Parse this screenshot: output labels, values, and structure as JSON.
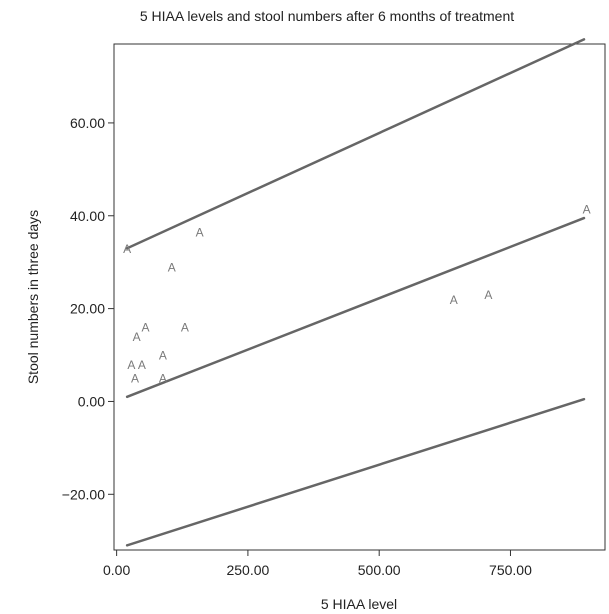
{
  "chart_data": {
    "type": "scatter",
    "title": "5 HIAA levels and stool numbers after 6 months of treatment",
    "xlabel": "5 HIAA level",
    "ylabel": "Stool numbers in three days",
    "xlim": [
      -5,
      930
    ],
    "ylim": [
      -32,
      77
    ],
    "xticks": [
      0,
      250,
      500,
      750
    ],
    "xtick_labels": [
      "0.00",
      "250.00",
      "500.00",
      "750.00"
    ],
    "yticks": [
      -20,
      0,
      20,
      40,
      60
    ],
    "ytick_labels": [
      "−20.00",
      "0.00",
      "20.00",
      "40.00",
      "60.00"
    ],
    "grid": false,
    "marker_label": "A",
    "points": [
      {
        "x": 20,
        "y": 33
      },
      {
        "x": 28,
        "y": 8
      },
      {
        "x": 35,
        "y": 5
      },
      {
        "x": 38,
        "y": 14
      },
      {
        "x": 48,
        "y": 8
      },
      {
        "x": 55,
        "y": 16
      },
      {
        "x": 88,
        "y": 10
      },
      {
        "x": 88,
        "y": 5
      },
      {
        "x": 105,
        "y": 29
      },
      {
        "x": 130,
        "y": 16
      },
      {
        "x": 158,
        "y": 36.5
      },
      {
        "x": 642,
        "y": 22
      },
      {
        "x": 708,
        "y": 23
      },
      {
        "x": 895,
        "y": 41.5
      }
    ],
    "lines": [
      {
        "x": [
          20,
          890
        ],
        "y": [
          33,
          78
        ]
      },
      {
        "x": [
          20,
          890
        ],
        "y": [
          1,
          39.5
        ]
      },
      {
        "x": [
          20,
          890
        ],
        "y": [
          -31,
          0.5
        ]
      }
    ],
    "colors": {
      "line": "#666666",
      "marker": "#7a7a7a",
      "axis": "#333333",
      "text": "#222222"
    }
  }
}
